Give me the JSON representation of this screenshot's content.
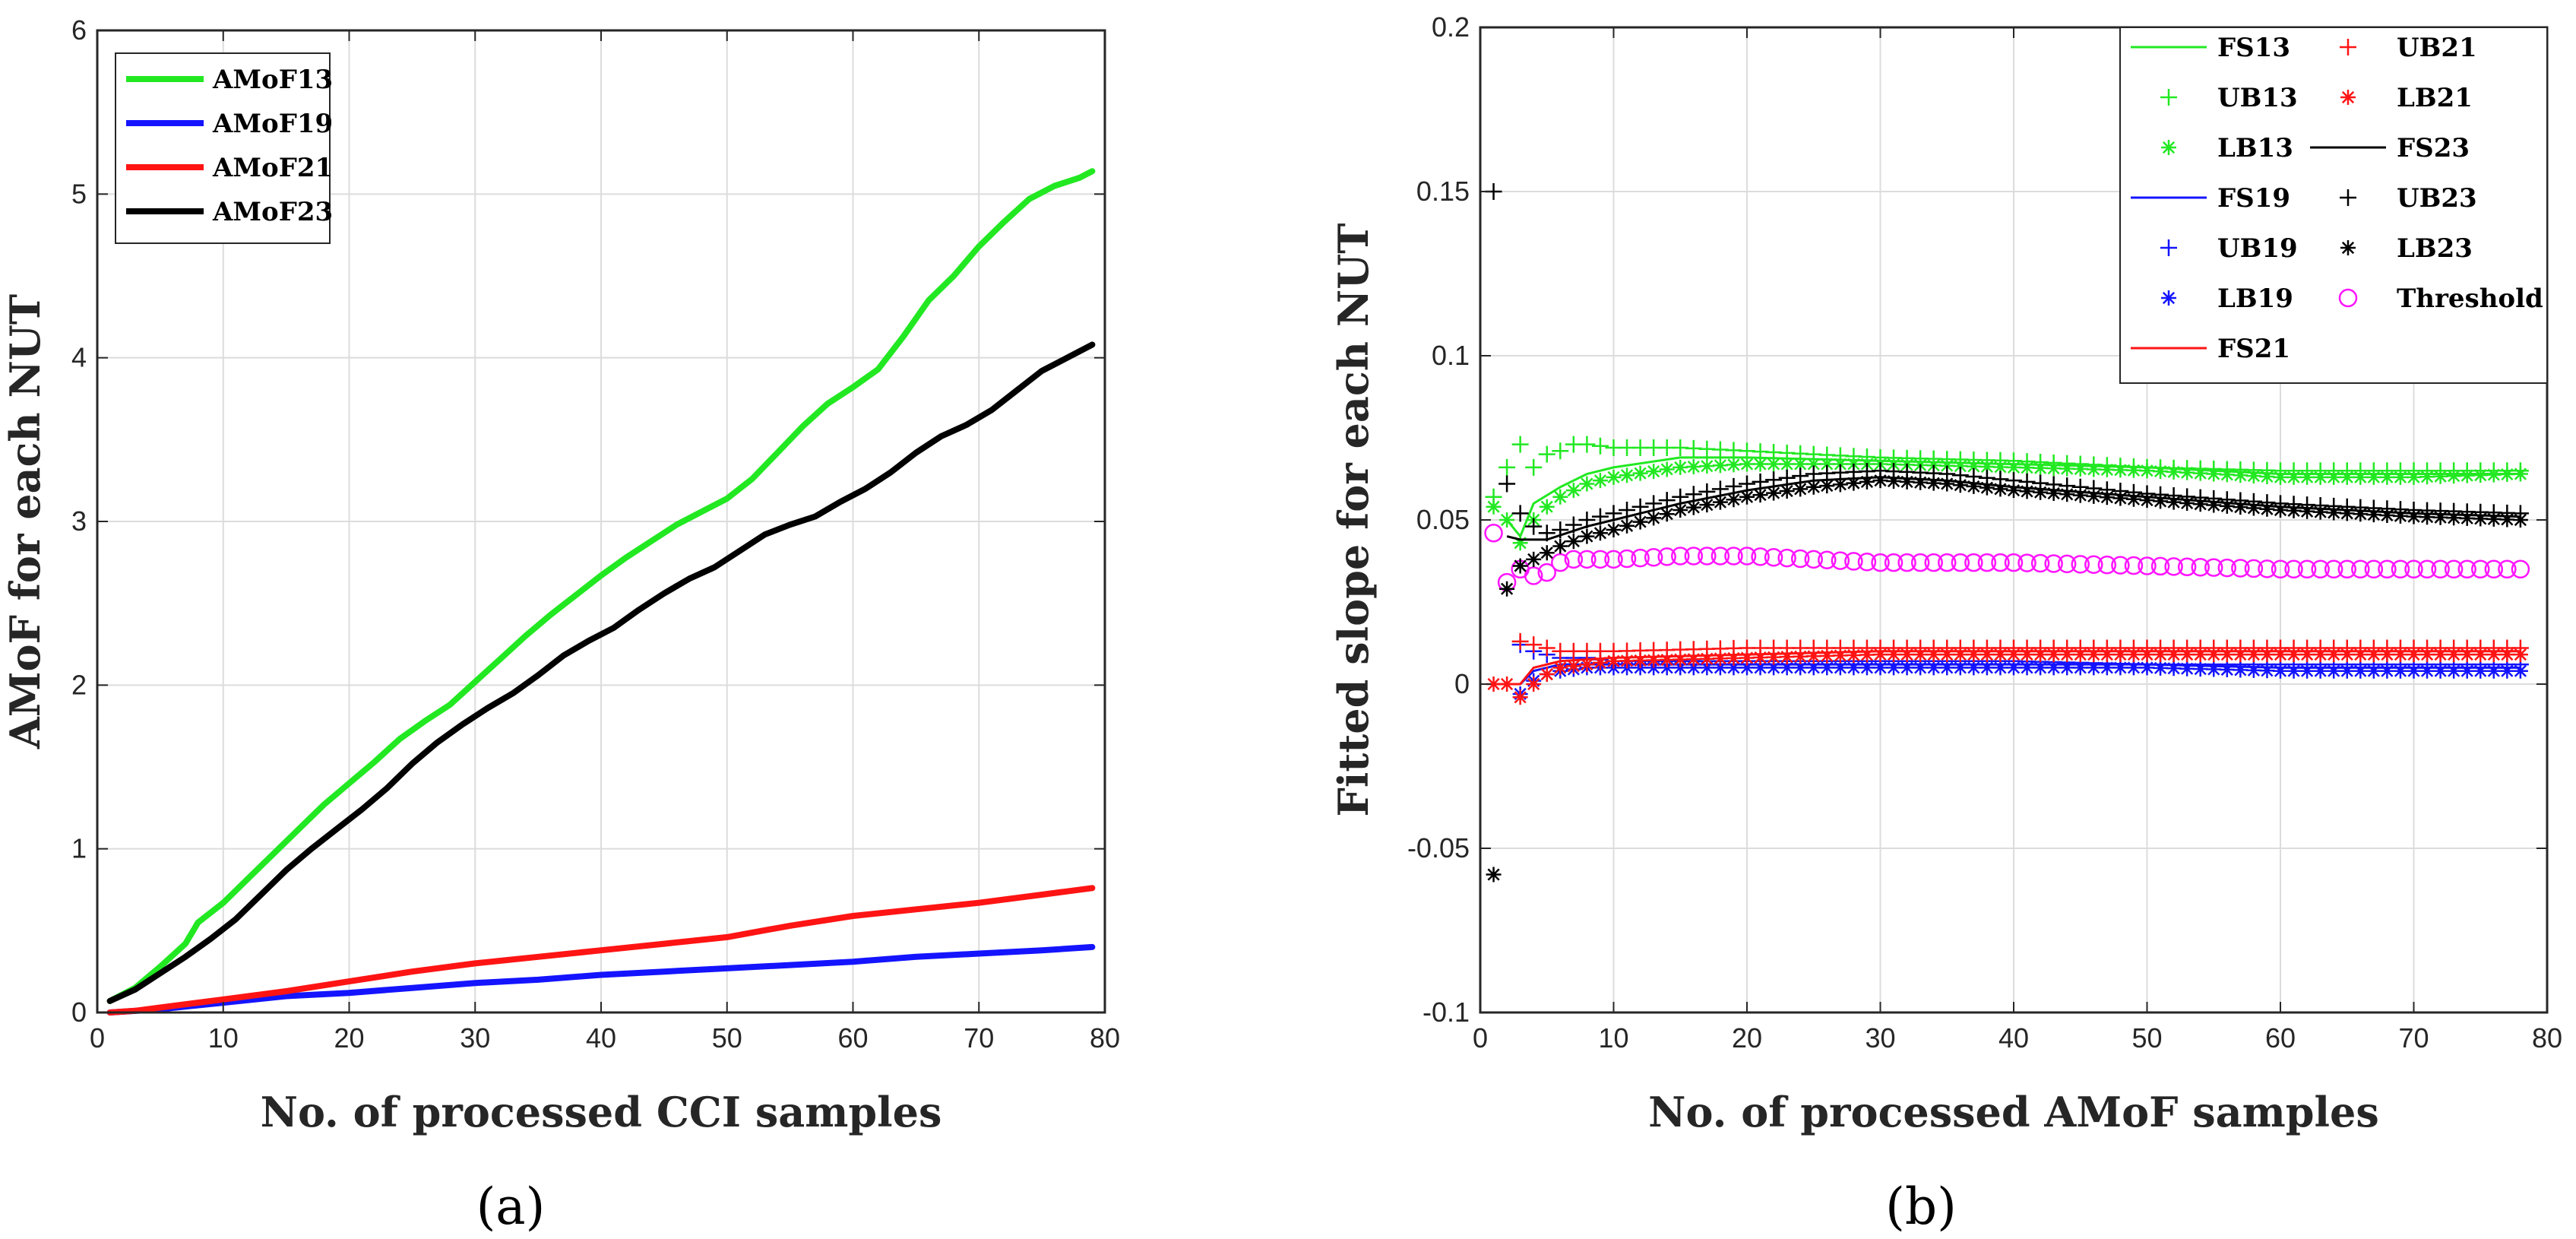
{
  "chart_data": [
    {
      "type": "line",
      "panel_label": "(a)",
      "xlabel": "No. of processed CCI samples",
      "ylabel": "AMoF for each NUT",
      "xlim": [
        0,
        80
      ],
      "ylim": [
        0,
        6
      ],
      "xticks": [
        0,
        10,
        20,
        30,
        40,
        50,
        60,
        70,
        80
      ],
      "yticks": [
        0,
        1,
        2,
        3,
        4,
        5,
        6
      ],
      "grid": true,
      "legend_position": "top-left",
      "series": [
        {
          "name": "AMoF13",
          "color": "#22e822",
          "x": [
            1,
            3,
            5,
            7,
            8,
            10,
            12,
            14,
            16,
            18,
            20,
            22,
            24,
            26,
            28,
            30,
            32,
            34,
            36,
            38,
            40,
            42,
            44,
            46,
            48,
            50,
            52,
            54,
            56,
            58,
            60,
            62,
            64,
            66,
            68,
            70,
            72,
            74,
            76,
            78,
            79
          ],
          "y": [
            0.07,
            0.15,
            0.28,
            0.42,
            0.55,
            0.67,
            0.82,
            0.97,
            1.12,
            1.27,
            1.4,
            1.53,
            1.67,
            1.78,
            1.88,
            2.02,
            2.16,
            2.3,
            2.43,
            2.55,
            2.67,
            2.78,
            2.88,
            2.98,
            3.06,
            3.14,
            3.26,
            3.42,
            3.58,
            3.72,
            3.82,
            3.93,
            4.13,
            4.35,
            4.5,
            4.68,
            4.83,
            4.97,
            5.05,
            5.1,
            5.14
          ]
        },
        {
          "name": "AMoF19",
          "color": "#1414ff",
          "x": [
            1,
            5,
            10,
            15,
            20,
            25,
            30,
            35,
            40,
            45,
            50,
            55,
            60,
            65,
            70,
            75,
            79
          ],
          "y": [
            0.0,
            0.02,
            0.06,
            0.1,
            0.12,
            0.15,
            0.18,
            0.2,
            0.23,
            0.25,
            0.27,
            0.29,
            0.31,
            0.34,
            0.36,
            0.38,
            0.4
          ]
        },
        {
          "name": "AMoF21",
          "color": "#ff1414",
          "x": [
            1,
            3,
            5,
            10,
            15,
            20,
            25,
            30,
            35,
            40,
            45,
            50,
            55,
            60,
            65,
            70,
            75,
            79
          ],
          "y": [
            0.0,
            0.01,
            0.03,
            0.08,
            0.13,
            0.19,
            0.25,
            0.3,
            0.34,
            0.38,
            0.42,
            0.46,
            0.53,
            0.59,
            0.63,
            0.67,
            0.72,
            0.76
          ]
        },
        {
          "name": "AMoF23",
          "color": "#000000",
          "x": [
            1,
            3,
            5,
            7,
            9,
            11,
            13,
            15,
            17,
            19,
            21,
            23,
            25,
            27,
            29,
            31,
            33,
            35,
            37,
            39,
            41,
            43,
            45,
            47,
            49,
            51,
            53,
            55,
            57,
            59,
            61,
            63,
            65,
            67,
            69,
            71,
            73,
            75,
            77,
            79
          ],
          "y": [
            0.07,
            0.14,
            0.24,
            0.34,
            0.45,
            0.57,
            0.72,
            0.87,
            1.0,
            1.12,
            1.24,
            1.37,
            1.52,
            1.65,
            1.76,
            1.86,
            1.95,
            2.06,
            2.18,
            2.27,
            2.35,
            2.46,
            2.56,
            2.65,
            2.72,
            2.82,
            2.92,
            2.98,
            3.03,
            3.12,
            3.2,
            3.3,
            3.42,
            3.52,
            3.59,
            3.68,
            3.8,
            3.92,
            4.0,
            4.08
          ]
        }
      ]
    },
    {
      "type": "line",
      "panel_label": "(b)",
      "xlabel": "No. of processed AMoF samples",
      "ylabel": "Fitted slope for each NUT",
      "xlim": [
        0,
        80
      ],
      "ylim": [
        -0.1,
        0.2
      ],
      "xticks": [
        0,
        10,
        20,
        30,
        40,
        50,
        60,
        70,
        80
      ],
      "yticks": [
        -0.1,
        -0.05,
        0,
        0.05,
        0.1,
        0.15,
        0.2
      ],
      "ytick_labels": [
        "-0.1",
        "-0.05",
        "0",
        "0.05",
        "0.1",
        "0.15",
        "0.2"
      ],
      "grid": true,
      "legend_position": "top-right",
      "colors": {
        "green": "#22e822",
        "blue": "#1414ff",
        "red": "#ff1414",
        "black": "#000000",
        "magenta": "#ff14ff"
      },
      "groups": [
        {
          "id": "13",
          "color": "#22e822",
          "fs": [
            [
              2,
              0.05
            ],
            [
              3,
              0.045
            ],
            [
              4,
              0.055
            ],
            [
              6,
              0.06
            ],
            [
              8,
              0.064
            ],
            [
              10,
              0.066
            ],
            [
              15,
              0.069
            ],
            [
              20,
              0.069
            ],
            [
              30,
              0.068
            ],
            [
              40,
              0.067
            ],
            [
              50,
              0.066
            ],
            [
              60,
              0.064
            ],
            [
              70,
              0.064
            ],
            [
              78,
              0.064
            ]
          ],
          "ub": [
            [
              1,
              0.057
            ],
            [
              2,
              0.066
            ],
            [
              3,
              0.073
            ],
            [
              4,
              0.066
            ],
            [
              5,
              0.07
            ],
            [
              6,
              0.071
            ],
            [
              7,
              0.073
            ],
            [
              8,
              0.073
            ],
            [
              10,
              0.072
            ],
            [
              15,
              0.072
            ],
            [
              20,
              0.071
            ],
            [
              30,
              0.069
            ],
            [
              40,
              0.068
            ],
            [
              50,
              0.066
            ],
            [
              60,
              0.065
            ],
            [
              70,
              0.065
            ],
            [
              78,
              0.065
            ]
          ],
          "lb": [
            [
              1,
              0.054
            ],
            [
              2,
              0.05
            ],
            [
              3,
              0.043
            ],
            [
              4,
              0.05
            ],
            [
              5,
              0.054
            ],
            [
              6,
              0.057
            ],
            [
              8,
              0.061
            ],
            [
              10,
              0.063
            ],
            [
              15,
              0.066
            ],
            [
              20,
              0.067
            ],
            [
              30,
              0.067
            ],
            [
              40,
              0.066
            ],
            [
              50,
              0.065
            ],
            [
              60,
              0.063
            ],
            [
              70,
              0.063
            ],
            [
              78,
              0.064
            ]
          ]
        },
        {
          "id": "19",
          "color": "#1414ff",
          "fs": [
            [
              2,
              0.0
            ],
            [
              3,
              0.0
            ],
            [
              4,
              0.004
            ],
            [
              6,
              0.006
            ],
            [
              10,
              0.006
            ],
            [
              20,
              0.006
            ],
            [
              30,
              0.006
            ],
            [
              40,
              0.006
            ],
            [
              50,
              0.006
            ],
            [
              60,
              0.005
            ],
            [
              70,
              0.005
            ],
            [
              78,
              0.005
            ]
          ],
          "ub": [
            [
              3,
              0.012
            ],
            [
              4,
              0.01
            ],
            [
              5,
              0.009
            ],
            [
              6,
              0.008
            ],
            [
              8,
              0.008
            ],
            [
              10,
              0.007
            ],
            [
              20,
              0.007
            ],
            [
              30,
              0.007
            ],
            [
              40,
              0.007
            ],
            [
              50,
              0.006
            ],
            [
              60,
              0.006
            ],
            [
              70,
              0.006
            ],
            [
              78,
              0.006
            ]
          ],
          "lb": [
            [
              3,
              -0.003
            ],
            [
              4,
              0.001
            ],
            [
              5,
              0.003
            ],
            [
              6,
              0.004
            ],
            [
              8,
              0.005
            ],
            [
              10,
              0.005
            ],
            [
              20,
              0.005
            ],
            [
              30,
              0.005
            ],
            [
              40,
              0.005
            ],
            [
              50,
              0.005
            ],
            [
              60,
              0.004
            ],
            [
              70,
              0.004
            ],
            [
              78,
              0.004
            ]
          ]
        },
        {
          "id": "21",
          "color": "#ff1414",
          "fs": [
            [
              1,
              0.0
            ],
            [
              2,
              0.0
            ],
            [
              3,
              0.0
            ],
            [
              4,
              0.005
            ],
            [
              6,
              0.007
            ],
            [
              10,
              0.008
            ],
            [
              20,
              0.009
            ],
            [
              30,
              0.01
            ],
            [
              40,
              0.01
            ],
            [
              50,
              0.01
            ],
            [
              60,
              0.01
            ],
            [
              70,
              0.01
            ],
            [
              78,
              0.01
            ]
          ],
          "ub": [
            [
              3,
              0.013
            ],
            [
              4,
              0.012
            ],
            [
              5,
              0.011
            ],
            [
              6,
              0.01
            ],
            [
              8,
              0.01
            ],
            [
              10,
              0.01
            ],
            [
              20,
              0.011
            ],
            [
              30,
              0.011
            ],
            [
              40,
              0.011
            ],
            [
              50,
              0.011
            ],
            [
              60,
              0.011
            ],
            [
              70,
              0.011
            ],
            [
              78,
              0.011
            ]
          ],
          "lb": [
            [
              1,
              0.0
            ],
            [
              2,
              0.0
            ],
            [
              3,
              -0.004
            ],
            [
              4,
              0.0
            ],
            [
              5,
              0.003
            ],
            [
              6,
              0.005
            ],
            [
              8,
              0.006
            ],
            [
              10,
              0.007
            ],
            [
              20,
              0.008
            ],
            [
              30,
              0.009
            ],
            [
              40,
              0.009
            ],
            [
              50,
              0.009
            ],
            [
              60,
              0.009
            ],
            [
              70,
              0.009
            ],
            [
              78,
              0.009
            ]
          ]
        },
        {
          "id": "23",
          "color": "#000000",
          "fs": [
            [
              2,
              0.045
            ],
            [
              3,
              0.044
            ],
            [
              5,
              0.044
            ],
            [
              8,
              0.048
            ],
            [
              10,
              0.05
            ],
            [
              15,
              0.055
            ],
            [
              20,
              0.059
            ],
            [
              25,
              0.062
            ],
            [
              30,
              0.063
            ],
            [
              35,
              0.062
            ],
            [
              40,
              0.06
            ],
            [
              50,
              0.057
            ],
            [
              60,
              0.054
            ],
            [
              70,
              0.052
            ],
            [
              78,
              0.051
            ]
          ],
          "ub": [
            [
              1,
              0.15
            ],
            [
              2,
              0.061
            ],
            [
              3,
              0.052
            ],
            [
              4,
              0.048
            ],
            [
              5,
              0.046
            ],
            [
              6,
              0.047
            ],
            [
              8,
              0.05
            ],
            [
              10,
              0.052
            ],
            [
              15,
              0.057
            ],
            [
              20,
              0.061
            ],
            [
              25,
              0.064
            ],
            [
              30,
              0.065
            ],
            [
              35,
              0.064
            ],
            [
              40,
              0.062
            ],
            [
              50,
              0.058
            ],
            [
              60,
              0.055
            ],
            [
              70,
              0.053
            ],
            [
              78,
              0.052
            ]
          ],
          "lb": [
            [
              1,
              -0.058
            ],
            [
              2,
              0.029
            ],
            [
              3,
              0.036
            ],
            [
              4,
              0.038
            ],
            [
              5,
              0.04
            ],
            [
              6,
              0.042
            ],
            [
              8,
              0.045
            ],
            [
              10,
              0.047
            ],
            [
              15,
              0.053
            ],
            [
              20,
              0.057
            ],
            [
              25,
              0.06
            ],
            [
              30,
              0.062
            ],
            [
              35,
              0.061
            ],
            [
              40,
              0.059
            ],
            [
              50,
              0.056
            ],
            [
              60,
              0.053
            ],
            [
              70,
              0.051
            ],
            [
              78,
              0.05
            ]
          ]
        }
      ],
      "threshold": {
        "color": "#ff14ff",
        "points": [
          [
            1,
            0.046
          ],
          [
            2,
            0.031
          ],
          [
            3,
            0.035
          ],
          [
            4,
            0.033
          ],
          [
            5,
            0.034
          ],
          [
            6,
            0.037
          ],
          [
            7,
            0.038
          ],
          [
            8,
            0.038
          ],
          [
            10,
            0.038
          ],
          [
            15,
            0.039
          ],
          [
            20,
            0.039
          ],
          [
            25,
            0.038
          ],
          [
            30,
            0.037
          ],
          [
            40,
            0.037
          ],
          [
            50,
            0.036
          ],
          [
            60,
            0.035
          ],
          [
            70,
            0.035
          ],
          [
            78,
            0.035
          ]
        ]
      },
      "legend": [
        [
          "FS13",
          "UB13",
          "LB13",
          "FS19",
          "UB19",
          "LB19",
          "FS21"
        ],
        [
          "UB21",
          "LB21",
          "FS23",
          "UB23",
          "LB23",
          "Threshold"
        ]
      ]
    }
  ]
}
